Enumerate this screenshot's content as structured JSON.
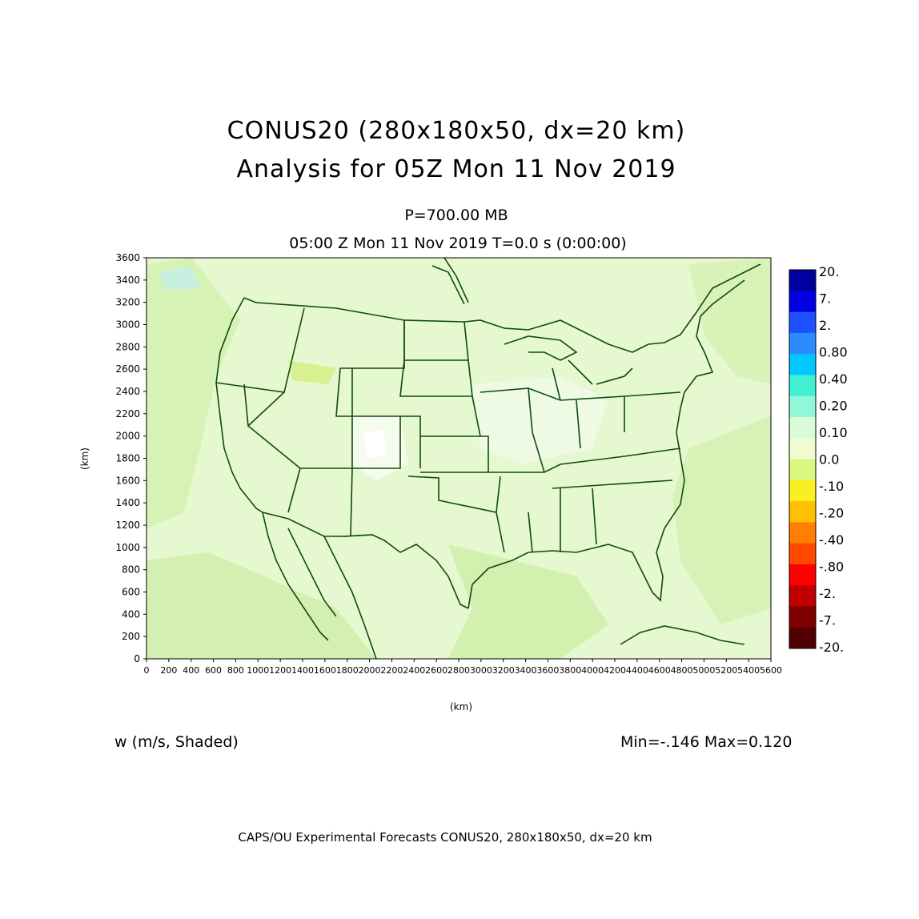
{
  "title_line1": "CONUS20 (280x180x50, dx=20 km)",
  "title_line2": "Analysis for 05Z Mon 11 Nov 2019",
  "level": "P=700.00 MB",
  "valid_time": "05:00 Z Mon 11 Nov 2019    T=0.0 s (0:00:00)",
  "axes": {
    "xlabel": "(km)",
    "ylabel": "(km)",
    "x_ticks": [
      "0",
      "200",
      "400",
      "600",
      "800",
      "1000",
      "1200",
      "1400",
      "1600",
      "1800",
      "2000",
      "2200",
      "2400",
      "2600",
      "2800",
      "3000",
      "3200",
      "3400",
      "3600",
      "3800",
      "4000",
      "4200",
      "4400",
      "4600",
      "4800",
      "5000",
      "5200",
      "5400",
      "5600"
    ],
    "y_ticks": [
      "0",
      "200",
      "400",
      "600",
      "800",
      "1000",
      "1200",
      "1400",
      "1600",
      "1800",
      "2000",
      "2200",
      "2400",
      "2600",
      "2800",
      "3000",
      "3200",
      "3400",
      "3600"
    ],
    "xlim": [
      0,
      5600
    ],
    "ylim": [
      0,
      3600
    ]
  },
  "field_label": "w (m/s, Shaded)",
  "min_max": "Min=-.146 Max=0.120",
  "footer": "CAPS/OU Experimental Forecasts  CONUS20, 280x180x50, dx=20 km",
  "legend": {
    "labels": [
      "20.",
      "7.",
      "2.",
      "0.80",
      "0.40",
      "0.20",
      "0.10",
      "0.0",
      "-.10",
      "-.20",
      "-.40",
      "-.80",
      "-2.",
      "-7.",
      "-20."
    ],
    "colors": [
      "#0000a0",
      "#0000e0",
      "#1e50ff",
      "#2a8cff",
      "#00c8ff",
      "#40f0d0",
      "#90f8d8",
      "#d8fcd8",
      "#f0fcd0",
      "#d8f880",
      "#f8f020",
      "#ffc000",
      "#ff8000",
      "#ff4800",
      "#ff0000",
      "#c00000",
      "#800000",
      "#500000"
    ]
  },
  "colors": {
    "map_background": "#e6f8d0",
    "boundary": "#0f4a0f"
  }
}
